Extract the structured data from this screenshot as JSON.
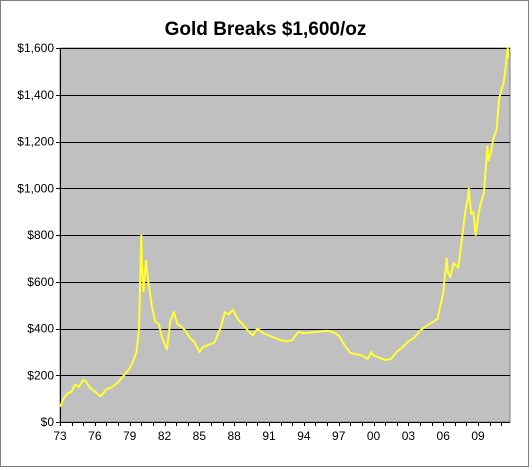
{
  "colors": {
    "plot_background": "#c0c0c0",
    "series_line": "#ffff33",
    "gridline": "#000000",
    "axis": "#000000"
  },
  "chart_data": {
    "type": "line",
    "title": "Gold Breaks $1,600/oz",
    "xlabel": "",
    "ylabel": "",
    "xlim": [
      1973,
      2011.75
    ],
    "ylim": [
      0,
      1600
    ],
    "grid": true,
    "x_tick_labels": [
      "73",
      "76",
      "79",
      "82",
      "85",
      "88",
      "91",
      "94",
      "97",
      "00",
      "03",
      "06",
      "09"
    ],
    "x_tick_values": [
      1973,
      1976,
      1979,
      1982,
      1985,
      1988,
      1991,
      1994,
      1997,
      2000,
      2003,
      2006,
      2009
    ],
    "y_tick_labels": [
      "$0",
      "$200",
      "$400",
      "$600",
      "$800",
      "$1,000",
      "$1,200",
      "$1,400",
      "$1,600"
    ],
    "y_tick_values": [
      0,
      200,
      400,
      600,
      800,
      1000,
      1200,
      1400,
      1600
    ],
    "series": [
      {
        "x": [
          1973.0,
          1973.3,
          1973.6,
          1974.0,
          1974.3,
          1974.6,
          1975.0,
          1975.3,
          1975.6,
          1976.0,
          1976.5,
          1977.0,
          1977.5,
          1978.0,
          1978.5,
          1979.0,
          1979.3,
          1979.6,
          1979.8,
          1980.0,
          1980.05,
          1980.2,
          1980.4,
          1980.6,
          1980.9,
          1981.2,
          1981.5,
          1981.8,
          1982.2,
          1982.5,
          1982.8,
          1983.1,
          1983.4,
          1983.8,
          1984.2,
          1984.6,
          1985.0,
          1985.3,
          1985.8,
          1986.3,
          1986.8,
          1987.2,
          1987.5,
          1987.9,
          1988.3,
          1988.7,
          1989.2,
          1989.6,
          1990.0,
          1990.5,
          1991.0,
          1991.5,
          1992.0,
          1992.5,
          1993.0,
          1993.5,
          1994.0,
          1995.0,
          1996.0,
          1996.5,
          1997.0,
          1997.5,
          1998.0,
          1999.0,
          1999.5,
          1999.8,
          2000.0,
          2000.5,
          2001.0,
          2001.5,
          2002.0,
          2002.5,
          2003.0,
          2003.5,
          2004.0,
          2004.5,
          2005.0,
          2005.5,
          2006.0,
          2006.3,
          2006.4,
          2006.6,
          2006.9,
          2007.3,
          2007.6,
          2007.9,
          2008.1,
          2008.2,
          2008.4,
          2008.6,
          2008.8,
          2009.0,
          2009.2,
          2009.5,
          2009.8,
          2009.9,
          2010.1,
          2010.3,
          2010.6,
          2010.8,
          2011.0,
          2011.2,
          2011.4,
          2011.55,
          2011.6
        ],
        "y": [
          65,
          100,
          120,
          130,
          160,
          150,
          180,
          170,
          145,
          130,
          110,
          140,
          150,
          170,
          200,
          230,
          260,
          300,
          400,
          800,
          680,
          560,
          690,
          600,
          500,
          430,
          420,
          360,
          310,
          430,
          470,
          420,
          410,
          390,
          360,
          340,
          300,
          320,
          330,
          340,
          400,
          470,
          460,
          480,
          440,
          420,
          390,
          370,
          400,
          380,
          370,
          360,
          350,
          345,
          350,
          385,
          380,
          385,
          390,
          385,
          370,
          330,
          295,
          285,
          270,
          300,
          285,
          275,
          265,
          270,
          300,
          320,
          345,
          360,
          390,
          410,
          425,
          440,
          550,
          700,
          640,
          620,
          680,
          660,
          780,
          900,
          950,
          1000,
          890,
          900,
          800,
          880,
          930,
          980,
          1180,
          1120,
          1150,
          1210,
          1250,
          1380,
          1420,
          1450,
          1520,
          1600,
          1560
        ]
      }
    ]
  }
}
